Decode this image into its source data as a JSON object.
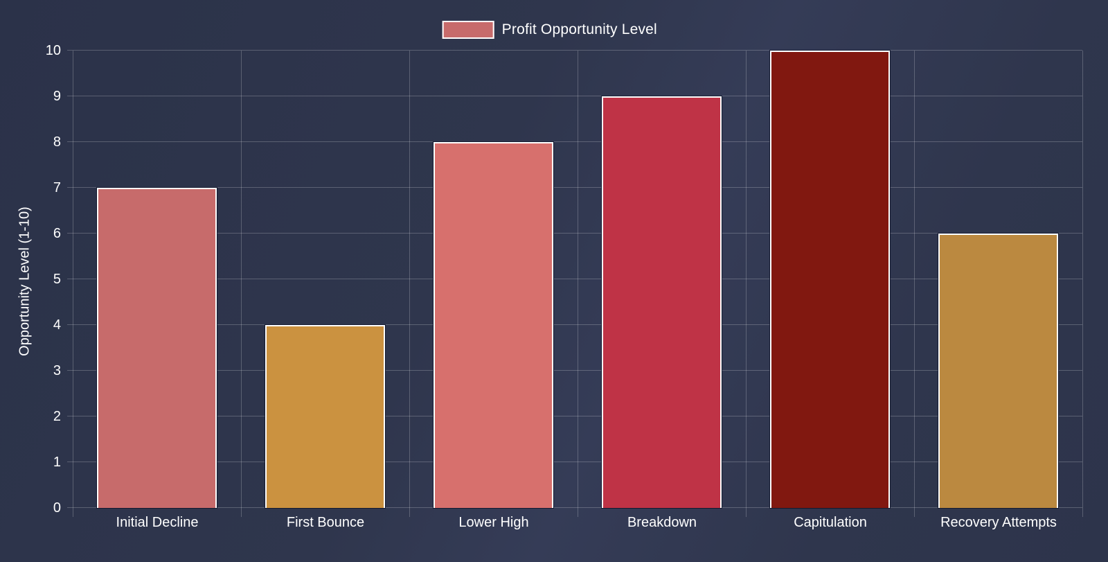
{
  "chart_data": {
    "type": "bar",
    "title": "",
    "legend": {
      "label": "Profit Opportunity Level",
      "position": "top"
    },
    "categories": [
      "Initial Decline",
      "First Bounce",
      "Lower High",
      "Breakdown",
      "Capitulation",
      "Recovery Attempts"
    ],
    "series": [
      {
        "name": "Profit Opportunity Level",
        "values": [
          7,
          4,
          8,
          9,
          10,
          6
        ],
        "colors": [
          "#c76b6b",
          "#cb9240",
          "#d7706d",
          "#bf3346",
          "#811810",
          "#bb8940"
        ]
      }
    ],
    "xlabel": "",
    "ylabel": "Opportunity Level (1-10)",
    "ylim": [
      0,
      10
    ],
    "ytick_step": 1,
    "yticks": [
      "0",
      "1",
      "2",
      "3",
      "4",
      "5",
      "6",
      "7",
      "8",
      "9",
      "10"
    ],
    "grid": true,
    "legend_position": "top"
  },
  "colors": {
    "background": "#2f364d",
    "grid": "rgba(255,255,255,0.22)",
    "text": "#ffffff",
    "bar_border": "#ffffff",
    "legend_swatch": "#c76b6b"
  }
}
